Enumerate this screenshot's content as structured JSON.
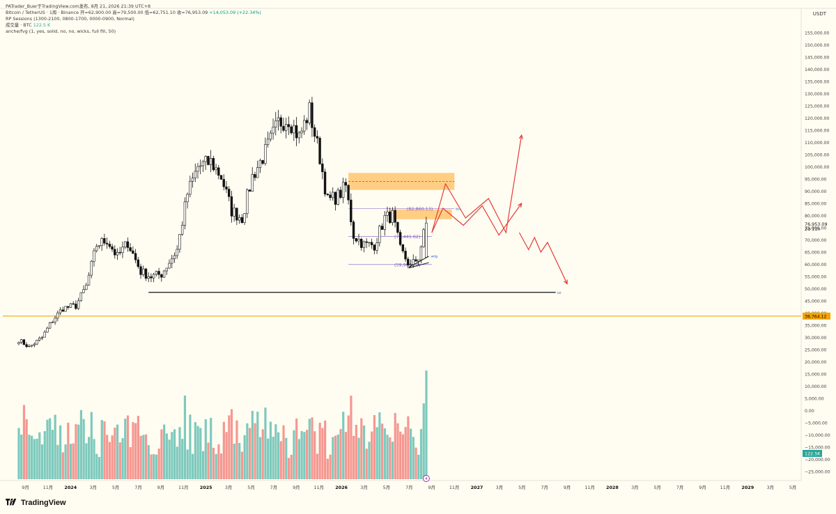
{
  "header": {
    "author_line": "PATrader_Buer于TradingView.com发布,  8月 21, 2026 21:39 UTC+8",
    "symbol": "Bitcoin / TetherUS · 1周 · Binance",
    "ohlc": "开=62,900.00  高=79,500.00  低=62,751.10  收=76,953.09",
    "change": "+14,053.09 (+22.34%)",
    "indicator_sessions": "RP Sessions (1300-2100, 0800-1700, 0000-0900, Normal)",
    "indicator_volume_label": "成交量 · BTC",
    "indicator_volume_value": "122.5 K",
    "indicator_fvg": "anche/fvg (1, yes, solid, no, no, wicks, full fill, 50)"
  },
  "currency_unit": "USDT",
  "colors": {
    "background": "#fffdf2",
    "bull": "#26a69a",
    "bear": "#ef5350",
    "candle": "#111111",
    "fvg_zone": "#ffa726",
    "forecast_path": "#e53935",
    "support_line": "#f5a400",
    "level_line_purple": "#7e57c2"
  },
  "footer": {
    "brand": "TradingView",
    "logo_icon": "tradingview-logo-icon"
  },
  "chart_data": {
    "type": "candlestick",
    "title": "Bitcoin / TetherUS · 1周 · Binance",
    "y_axis": {
      "ylim": [
        -25000,
        155000
      ],
      "ticks": [
        "155,000.00",
        "150,000.00",
        "145,000.00",
        "140,000.00",
        "135,000.00",
        "130,000.00",
        "125,000.00",
        "120,000.00",
        "115,000.00",
        "110,000.00",
        "105,000.00",
        "100,000.00",
        "95,000.00",
        "90,000.00",
        "85,000.00",
        "80,000.00",
        "75,000.00",
        "70,000.00",
        "65,000.00",
        "60,000.00",
        "55,000.00",
        "50,000.00",
        "45,000.00",
        "40,000.00",
        "35,000.00",
        "30,000.00",
        "25,000.00",
        "20,000.00",
        "15,000.00",
        "10,000.00",
        "5,000.00",
        "0.00",
        "−5,000.00",
        "−10,000.00",
        "−15,000.00",
        "−20,000.00",
        "−25,000.00"
      ],
      "tick_values": [
        155000,
        150000,
        145000,
        140000,
        135000,
        130000,
        125000,
        120000,
        115000,
        110000,
        105000,
        100000,
        95000,
        90000,
        85000,
        80000,
        75000,
        70000,
        65000,
        60000,
        55000,
        50000,
        45000,
        40000,
        35000,
        30000,
        25000,
        20000,
        15000,
        10000,
        5000,
        0,
        -5000,
        -10000,
        -15000,
        -20000,
        -25000
      ]
    },
    "x_axis": {
      "labels": [
        "9月",
        "11月",
        "2024",
        "3月",
        "5月",
        "7月",
        "9月",
        "11月",
        "2025",
        "3月",
        "5月",
        "7月",
        "9月",
        "11月",
        "2026",
        "3月",
        "5月",
        "7月",
        "9月",
        "11月",
        "2027",
        "3月",
        "5月",
        "7月",
        "9月",
        "11月",
        "2028",
        "3月",
        "5月",
        "7月",
        "9月",
        "11月",
        "2029",
        "3月",
        "5月"
      ],
      "label_months": [
        0,
        2,
        4,
        6,
        8,
        10,
        12,
        14,
        16,
        18,
        20,
        22,
        24,
        26,
        28,
        30,
        32,
        34,
        36,
        38,
        40,
        42,
        44,
        46,
        48,
        50,
        52,
        54,
        56,
        58,
        60,
        62,
        64,
        66,
        68
      ],
      "start_month": "2023-09",
      "bold_labels": [
        "2024",
        "2025",
        "2026",
        "2027",
        "2028",
        "2029"
      ]
    },
    "price_series_anchors": [
      {
        "date": "2023-08-14",
        "price": 29000
      },
      {
        "date": "2023-09-11",
        "price": 26000
      },
      {
        "date": "2023-10-16",
        "price": 30000
      },
      {
        "date": "2023-11-13",
        "price": 37000
      },
      {
        "date": "2023-12-11",
        "price": 42000
      },
      {
        "date": "2024-01-15",
        "price": 43000
      },
      {
        "date": "2024-02-12",
        "price": 51000
      },
      {
        "date": "2024-03-11",
        "price": 68000
      },
      {
        "date": "2024-04-08",
        "price": 70000
      },
      {
        "date": "2024-05-06",
        "price": 63000
      },
      {
        "date": "2024-06-03",
        "price": 69000
      },
      {
        "date": "2024-07-08",
        "price": 57000
      },
      {
        "date": "2024-08-05",
        "price": 55000
      },
      {
        "date": "2024-09-02",
        "price": 56000
      },
      {
        "date": "2024-10-14",
        "price": 66000
      },
      {
        "date": "2024-11-11",
        "price": 89000
      },
      {
        "date": "2024-12-09",
        "price": 100000
      },
      {
        "date": "2025-01-13",
        "price": 102000
      },
      {
        "date": "2025-02-10",
        "price": 96000
      },
      {
        "date": "2025-03-10",
        "price": 82000
      },
      {
        "date": "2025-04-07",
        "price": 79000
      },
      {
        "date": "2025-05-05",
        "price": 96000
      },
      {
        "date": "2025-06-09",
        "price": 106000
      },
      {
        "date": "2025-07-14",
        "price": 118000
      },
      {
        "date": "2025-08-11",
        "price": 120000
      },
      {
        "date": "2025-09-08",
        "price": 112000
      },
      {
        "date": "2025-10-06",
        "price": 123000
      },
      {
        "date": "2025-11-03",
        "price": 104000
      },
      {
        "date": "2025-11-24",
        "price": 86000
      },
      {
        "date": "2025-12-22",
        "price": 88000
      },
      {
        "date": "2026-01-12",
        "price": 92000
      },
      {
        "date": "2026-02-02",
        "price": 72000
      },
      {
        "date": "2026-03-02",
        "price": 68000
      },
      {
        "date": "2026-03-30",
        "price": 68000
      },
      {
        "date": "2026-04-27",
        "price": 79000
      },
      {
        "date": "2026-05-18",
        "price": 80000
      },
      {
        "date": "2026-06-08",
        "price": 66000
      },
      {
        "date": "2026-07-06",
        "price": 59000
      },
      {
        "date": "2026-07-27",
        "price": 63000
      },
      {
        "date": "2026-08-17",
        "price": 76953
      }
    ],
    "last_candle": {
      "open": 62900,
      "high": 79500,
      "low": 62751.1,
      "close": 76953.09
    },
    "volume": {
      "unit": "BTC",
      "last_value": "122.5K"
    },
    "fvg_zones": [
      {
        "top": 97500,
        "bottom": 90500,
        "mid": 94000,
        "from": "2026-01-19",
        "to": "2026-11-01"
      },
      {
        "top": 82500,
        "bottom": 78500,
        "from": "2026-05-11",
        "to": "2026-10-25"
      }
    ],
    "levels": [
      {
        "label": "(82,860.13)",
        "value": 82860.13,
        "from": "2026-01-19",
        "to": "2026-11-01",
        "tag": "bsl"
      },
      {
        "label": "(71,441.62)",
        "value": 71441.62,
        "from": "2026-01-19",
        "to": "2026-09-01"
      },
      {
        "label": "(59,903.10)",
        "value": 59903.1,
        "from": "2026-01-19",
        "to": "2026-09-01"
      },
      {
        "label": "",
        "value": 48500,
        "from": "2024-07-29",
        "to": "2027-08-01",
        "tag": "ssl"
      }
    ],
    "support_line": {
      "value": 38764.12,
      "label": "38,764.12"
    },
    "current_price": {
      "label": "76,953.09",
      "countdown": "2d 11h"
    },
    "volume_tag": "122.5K",
    "wedge_label": "wdg",
    "bsl_label": "bsl",
    "ssl_label": "ssl",
    "forecast_paths": [
      {
        "points": [
          [
            "2026-09-01",
            73000
          ],
          [
            "2026-10-08",
            93000
          ],
          [
            "2026-12-01",
            79000
          ],
          [
            "2027-02-01",
            87000
          ],
          [
            "2027-03-20",
            73000
          ],
          [
            "2027-05-01",
            113000
          ]
        ]
      },
      {
        "points": [
          [
            "2026-09-01",
            73000
          ],
          [
            "2026-10-01",
            83000
          ],
          [
            "2026-11-25",
            76000
          ],
          [
            "2027-01-15",
            84000
          ],
          [
            "2027-03-01",
            72000
          ],
          [
            "2027-05-01",
            85000
          ]
        ]
      },
      {
        "points": [
          [
            "2027-04-25",
            73000
          ],
          [
            "2027-05-20",
            66000
          ],
          [
            "2027-06-05",
            71000
          ],
          [
            "2027-06-22",
            65000
          ],
          [
            "2027-07-10",
            69000
          ],
          [
            "2027-09-01",
            52000
          ]
        ]
      }
    ]
  }
}
